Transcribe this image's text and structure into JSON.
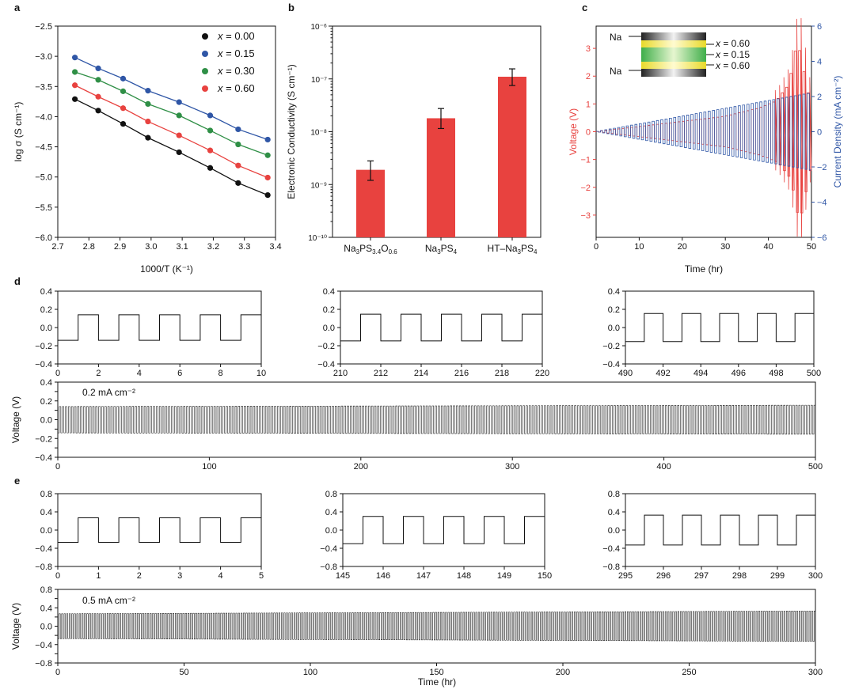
{
  "colors": {
    "black": "#111111",
    "blue": "#2f56a6",
    "green": "#2f8f46",
    "red": "#e8423f",
    "bar": "#e8423f",
    "cellYellow": "#f4e84a",
    "cellGreen": "#5cc35a"
  },
  "panels": {
    "a": "a",
    "b": "b",
    "c": "c",
    "d": "d",
    "e": "e"
  },
  "chart_data": [
    {
      "id": "a",
      "type": "scatter",
      "xlabel": "1000/T (K⁻¹)",
      "ylabel": "log σ (S cm⁻¹)",
      "xlim": [
        2.7,
        3.4
      ],
      "ylim": [
        -6.0,
        -2.5
      ],
      "xticks": [
        "2.7",
        "2.8",
        "2.9",
        "3.0",
        "3.1",
        "3.2",
        "3.3",
        "3.4"
      ],
      "yticks": [
        "−6.0",
        "−5.5",
        "−5.0",
        "−4.5",
        "−4.0",
        "−3.5",
        "−3.0",
        "−2.5"
      ],
      "x": [
        2.755,
        2.83,
        2.91,
        2.99,
        3.09,
        3.19,
        3.28,
        3.375
      ],
      "series": [
        {
          "name": "x = 0.00",
          "label_prefix": "x",
          "label_value": " = 0.00",
          "color": "#111111",
          "values": [
            -3.71,
            -3.9,
            -4.12,
            -4.35,
            -4.59,
            -4.85,
            -5.1,
            -5.3
          ]
        },
        {
          "name": "x = 0.15",
          "label_prefix": "x",
          "label_value": " = 0.15",
          "color": "#2f56a6",
          "values": [
            -3.02,
            -3.2,
            -3.37,
            -3.57,
            -3.76,
            -3.98,
            -4.21,
            -4.38
          ]
        },
        {
          "name": "x = 0.30",
          "label_prefix": "x",
          "label_value": " = 0.30",
          "color": "#2f8f46",
          "values": [
            -3.26,
            -3.39,
            -3.58,
            -3.79,
            -3.98,
            -4.23,
            -4.46,
            -4.64
          ]
        },
        {
          "name": "x = 0.60",
          "label_prefix": "x",
          "label_value": " = 0.60",
          "color": "#e8423f",
          "values": [
            -3.48,
            -3.67,
            -3.86,
            -4.08,
            -4.31,
            -4.56,
            -4.81,
            -5.01
          ]
        }
      ]
    },
    {
      "id": "b",
      "type": "bar",
      "ylabel": "Electronic Conductivity (S cm⁻¹)",
      "ylim_exp": [
        -10,
        -6
      ],
      "yticks": [
        "10⁻¹⁰",
        "10⁻⁹",
        "10⁻⁸",
        "10⁻⁷",
        "10⁻⁶"
      ],
      "categories": [
        "Na3PS3.4O0.6",
        "Na3PS4",
        "HT–Na3PS4"
      ],
      "category_labels": [
        {
          "a": "Na",
          "b": "3",
          "c": "PS",
          "d": "3.4",
          "e": "O",
          "f": "0.6"
        },
        {
          "a": "Na",
          "b": "3",
          "c": "PS",
          "d": "4",
          "e": "",
          "f": ""
        },
        {
          "a": "HT–Na",
          "b": "3",
          "c": "PS",
          "d": "4",
          "e": "",
          "f": ""
        }
      ],
      "values": [
        1.9e-09,
        1.8e-08,
        1.1e-07
      ],
      "err_low": [
        1.2e-09,
        1.15e-08,
        7.5e-08
      ],
      "err_high": [
        2.8e-09,
        2.75e-08,
        1.55e-07
      ]
    },
    {
      "id": "c",
      "type": "line",
      "xlabel": "Time (hr)",
      "ylabel_left": "Voltage (V)",
      "ylabel_right": "Current Density (mA cm⁻²)",
      "xlim": [
        0,
        50
      ],
      "ylim_left": [
        -3.8,
        3.8
      ],
      "ylim_right": [
        -6,
        6
      ],
      "xticks": [
        "0",
        "10",
        "20",
        "30",
        "40",
        "50"
      ],
      "yticks_left": [
        "−3",
        "−2",
        "−1",
        "0",
        "1",
        "2",
        "3"
      ],
      "yticks_right": [
        "−6",
        "−4",
        "−2",
        "0",
        "2",
        "4",
        "6"
      ],
      "cycles": 50,
      "current_max": 2.2,
      "voltage_envelope": {
        "t": [
          0,
          30,
          38,
          42,
          45,
          47,
          49.5
        ],
        "v": [
          0.0,
          0.55,
          0.85,
          1.1,
          1.7,
          3.3,
          1.4
        ]
      },
      "inset": {
        "electrode_top": "Na",
        "electrode_bottom": "Na",
        "layers": [
          {
            "prefix": "x",
            "value": " = 0.60"
          },
          {
            "prefix": "x",
            "value": " = 0.15"
          },
          {
            "prefix": "x",
            "value": " = 0.60"
          }
        ]
      }
    },
    {
      "id": "d",
      "type": "line",
      "ylabel": "Voltage (V)",
      "annotation": "0.2 mA cm⁻²",
      "amplitude": 0.14,
      "amplitude_end": 0.155,
      "insets": [
        {
          "xlim": [
            0,
            10
          ],
          "xticks": [
            "0",
            "2",
            "4",
            "6",
            "8",
            "10"
          ],
          "ylim": [
            -0.4,
            0.4
          ],
          "yticks": [
            "−0.4",
            "−0.2",
            "0.0",
            "0.2",
            "0.4"
          ]
        },
        {
          "xlim": [
            210,
            220
          ],
          "xticks": [
            "210",
            "212",
            "214",
            "216",
            "218",
            "220"
          ],
          "ylim": [
            -0.4,
            0.4
          ],
          "yticks": [
            "−0.4",
            "−0.2",
            "0.0",
            "0.2",
            "0.4"
          ]
        },
        {
          "xlim": [
            490,
            500
          ],
          "xticks": [
            "490",
            "492",
            "494",
            "496",
            "498",
            "500"
          ],
          "ylim": [
            -0.4,
            0.4
          ],
          "yticks": [
            "−0.4",
            "−0.2",
            "0.0",
            "0.2",
            "0.4"
          ]
        }
      ],
      "main": {
        "xlim": [
          0,
          500
        ],
        "xticks": [
          "0",
          "100",
          "200",
          "300",
          "400",
          "500"
        ],
        "ylim": [
          -0.4,
          0.4
        ],
        "yticks": [
          "−0.4",
          "−0.3",
          "−0.2",
          "−0.1",
          "0.0",
          "0.1",
          "0.2",
          "0.3",
          "0.4"
        ]
      }
    },
    {
      "id": "e",
      "type": "line",
      "ylabel": "Voltage (V)",
      "xlabel": "Time (hr)",
      "annotation": "0.5 mA cm⁻²",
      "amplitude": 0.27,
      "amplitude_end": 0.33,
      "insets": [
        {
          "xlim": [
            0,
            5
          ],
          "xticks": [
            "0",
            "1",
            "2",
            "3",
            "4",
            "5"
          ],
          "ylim": [
            -0.8,
            0.8
          ],
          "yticks": [
            "−0.8",
            "−0.4",
            "0.0",
            "0.4",
            "0.8"
          ]
        },
        {
          "xlim": [
            145,
            150
          ],
          "xticks": [
            "145",
            "146",
            "147",
            "148",
            "149",
            "150"
          ],
          "ylim": [
            -0.8,
            0.8
          ],
          "yticks": [
            "−0.8",
            "−0.4",
            "0.0",
            "0.4",
            "0.8"
          ]
        },
        {
          "xlim": [
            295,
            300
          ],
          "xticks": [
            "295",
            "296",
            "297",
            "298",
            "299",
            "300"
          ],
          "ylim": [
            -0.8,
            0.8
          ],
          "yticks": [
            "−0.8",
            "−0.4",
            "0.0",
            "0.4",
            "0.8"
          ]
        }
      ],
      "main": {
        "xlim": [
          0,
          300
        ],
        "xticks": [
          "0",
          "50",
          "100",
          "150",
          "200",
          "250",
          "300"
        ],
        "ylim": [
          -0.8,
          0.8
        ],
        "yticks": [
          "−0.8",
          "−0.6",
          "−0.4",
          "−0.2",
          "0.0",
          "0.2",
          "0.4",
          "0.6",
          "0.8"
        ]
      }
    }
  ]
}
